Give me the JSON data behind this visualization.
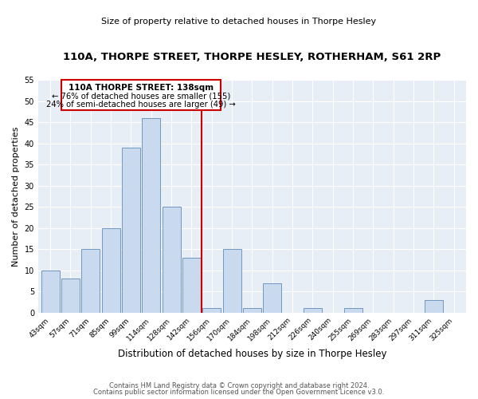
{
  "title": "110A, THORPE STREET, THORPE HESLEY, ROTHERHAM, S61 2RP",
  "subtitle": "Size of property relative to detached houses in Thorpe Hesley",
  "xlabel": "Distribution of detached houses by size in Thorpe Hesley",
  "ylabel": "Number of detached properties",
  "bin_labels": [
    "43sqm",
    "57sqm",
    "71sqm",
    "85sqm",
    "99sqm",
    "114sqm",
    "128sqm",
    "142sqm",
    "156sqm",
    "170sqm",
    "184sqm",
    "198sqm",
    "212sqm",
    "226sqm",
    "240sqm",
    "255sqm",
    "269sqm",
    "283sqm",
    "297sqm",
    "311sqm",
    "325sqm"
  ],
  "bar_values": [
    10,
    8,
    15,
    20,
    39,
    46,
    25,
    13,
    1,
    15,
    1,
    7,
    0,
    1,
    0,
    1,
    0,
    0,
    0,
    3,
    0
  ],
  "bar_color": "#c9d9ee",
  "bar_edge_color": "#7098c0",
  "property_label": "110A THORPE STREET: 138sqm",
  "annotation_line1": "← 76% of detached houses are smaller (155)",
  "annotation_line2": "24% of semi-detached houses are larger (49) →",
  "vline_color": "#cc0000",
  "vline_x_index": 7.5,
  "ylim": [
    0,
    55
  ],
  "yticks": [
    0,
    5,
    10,
    15,
    20,
    25,
    30,
    35,
    40,
    45,
    50,
    55
  ],
  "footer_line1": "Contains HM Land Registry data © Crown copyright and database right 2024.",
  "footer_line2": "Contains public sector information licensed under the Open Government Licence v3.0.",
  "bg_color": "#ffffff",
  "plot_bg_color": "#e8eef5"
}
